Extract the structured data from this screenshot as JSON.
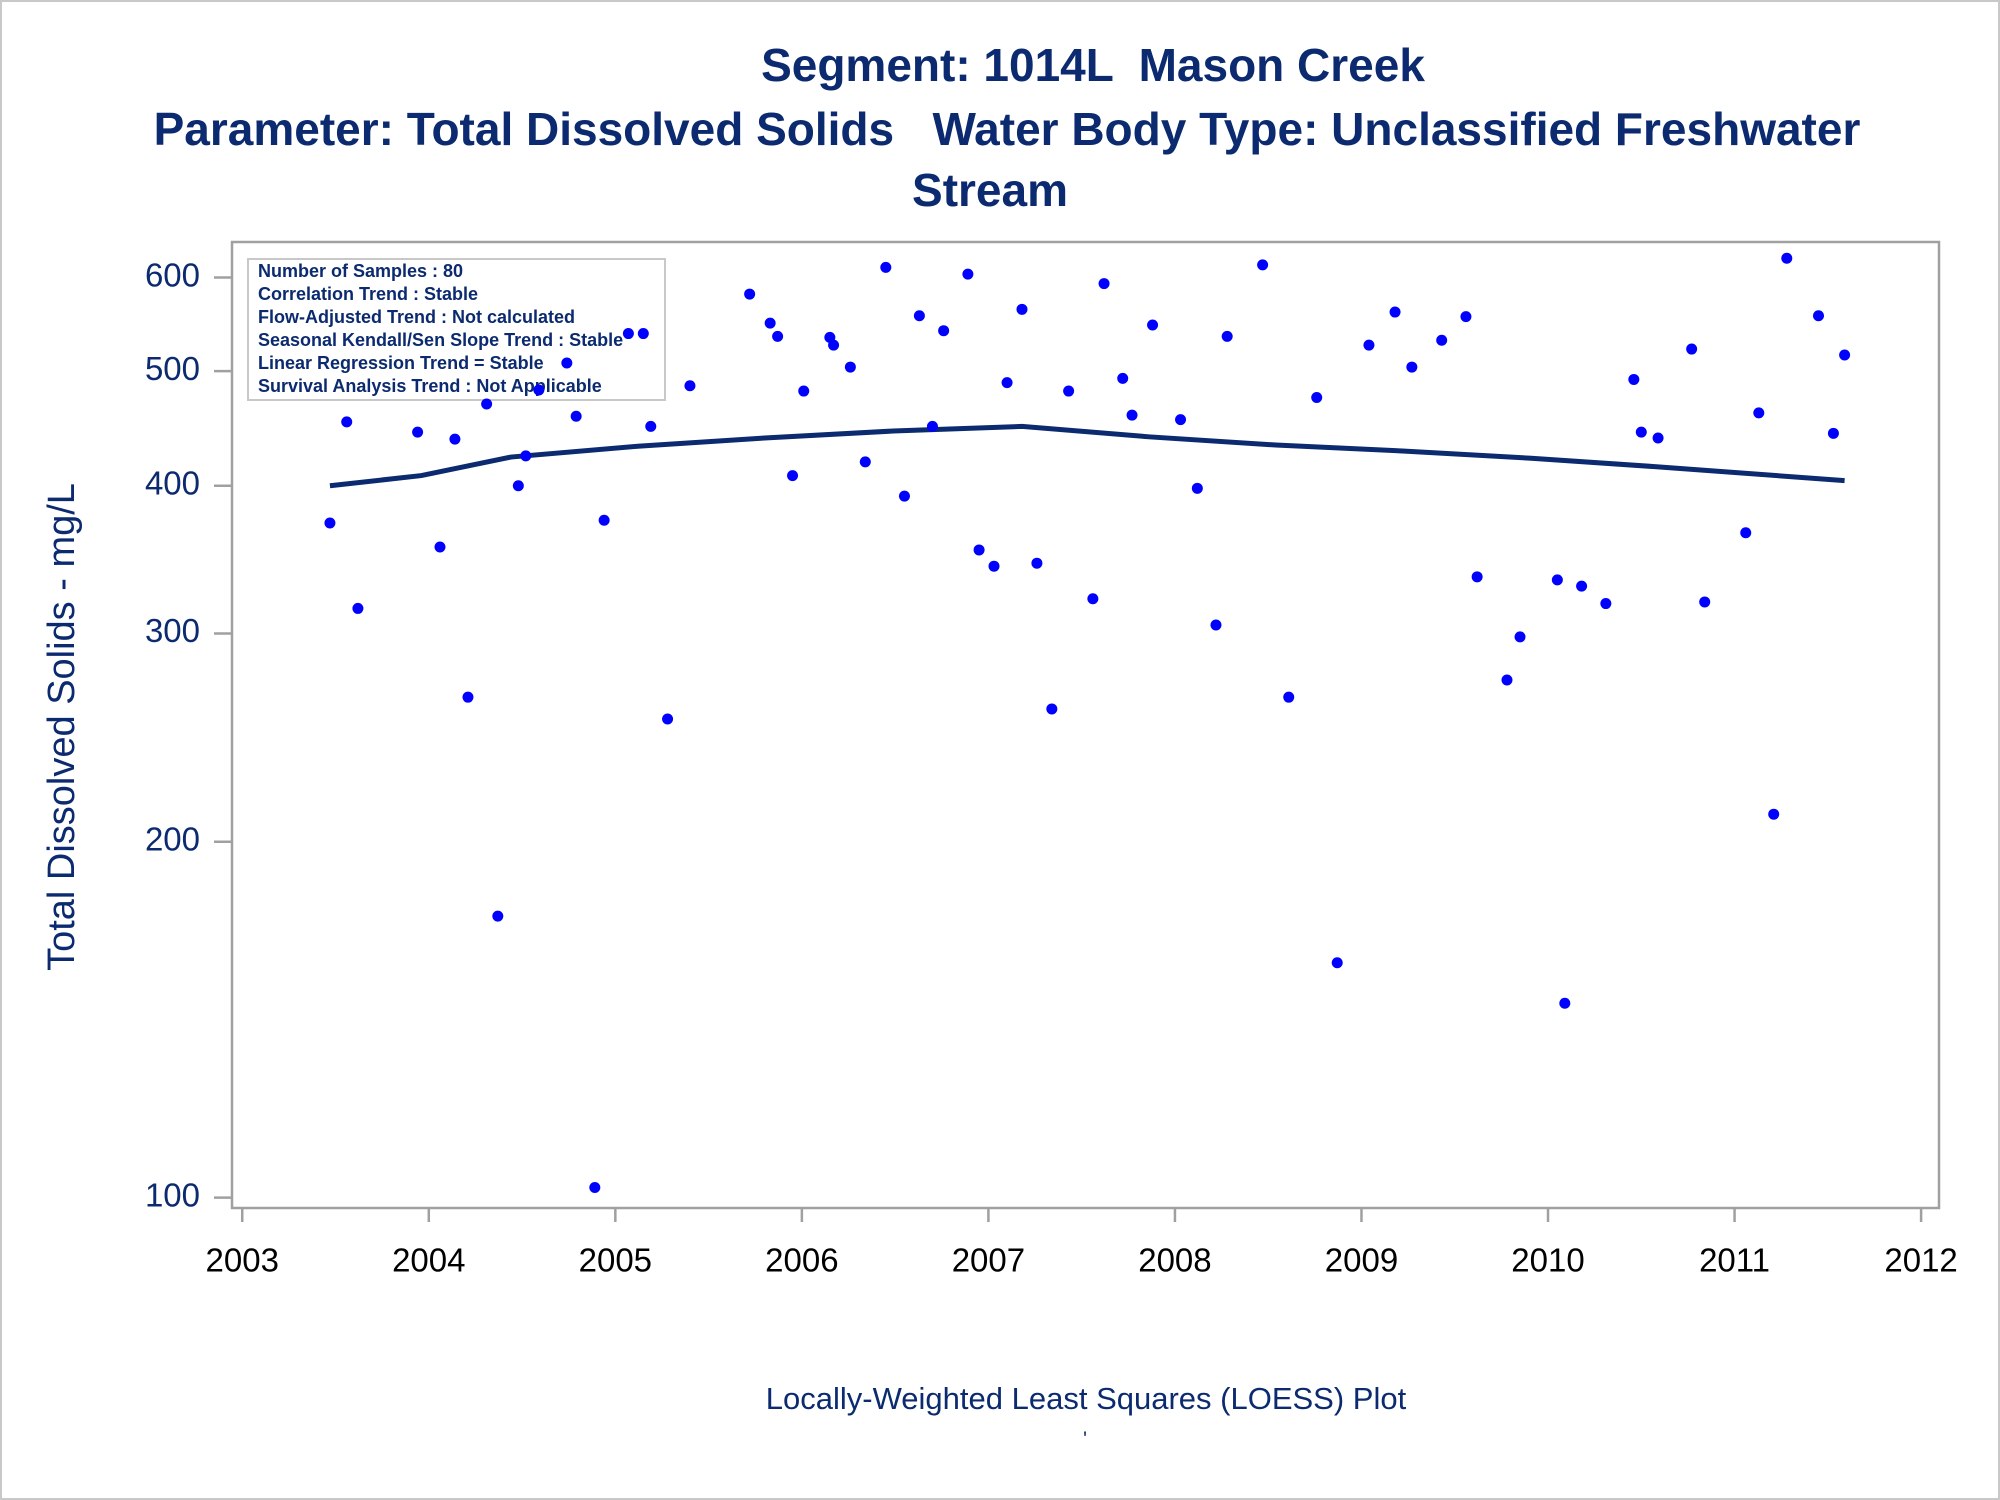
{
  "chart_data": {
    "type": "scatter",
    "title": "Segment: 1014L  Mason Creek",
    "subtitle": "Parameter: Total Dissolved Solids   Water Body Type: Unclassified Freshwater",
    "subtitle2": "Stream",
    "y_label": "Total Dissolved Solids - mg/L",
    "x_label": "Locally-Weighted Least Squares (LOESS) Plot",
    "footnote": "'",
    "annotations": [
      "Number of Samples : 80",
      "Correlation Trend : Stable",
      "Flow-Adjusted Trend : Not calculated",
      "Seasonal Kendall/Sen Slope Trend : Stable",
      "Linear Regression Trend = Stable",
      "Survival Analysis Trend : Not Applicable"
    ],
    "yscale": "log",
    "xlim": [
      2002.945,
      2012.096
    ],
    "xticks": [
      2003,
      2004,
      2005,
      2006,
      2007,
      2008,
      2009,
      2010,
      2011,
      2012
    ],
    "ylim": [
      98,
      643
    ],
    "yticks": [
      100,
      200,
      300,
      400,
      500,
      600
    ],
    "series": [
      {
        "type": "scatter",
        "color": "#0000ff",
        "x": [
          2003.47,
          2003.56,
          2003.62,
          2003.94,
          2004.06,
          2004.14,
          2004.21,
          2004.31,
          2004.37,
          2004.48,
          2004.52,
          2004.59,
          2004.74,
          2004.79,
          2004.89,
          2004.94,
          2005.07,
          2005.15,
          2005.19,
          2005.28,
          2005.4,
          2005.72,
          2005.83,
          2005.87,
          2005.95,
          2006.01,
          2006.15,
          2006.17,
          2006.26,
          2006.34,
          2006.45,
          2006.55,
          2006.63,
          2006.7,
          2006.76,
          2006.89,
          2006.95,
          2007.03,
          2007.1,
          2007.18,
          2007.26,
          2007.34,
          2007.43,
          2007.56,
          2007.62,
          2007.72,
          2007.77,
          2007.88,
          2008.03,
          2008.12,
          2008.22,
          2008.28,
          2008.47,
          2008.61,
          2008.76,
          2008.87,
          2009.04,
          2009.18,
          2009.27,
          2009.43,
          2009.56,
          2009.62,
          2009.78,
          2009.85,
          2010.05,
          2010.09,
          2010.18,
          2010.31,
          2010.46,
          2010.5,
          2010.59,
          2010.77,
          2010.84,
          2011.06,
          2011.13,
          2011.21,
          2011.28,
          2011.45,
          2011.53,
          2011.59
        ],
        "values": [
          372,
          453,
          315,
          444,
          355,
          438,
          265,
          469,
          173,
          400,
          424,
          482,
          508,
          458,
          102,
          374,
          538,
          538,
          449,
          254,
          486,
          581,
          549,
          535,
          408,
          481,
          534,
          526,
          504,
          419,
          612,
          392,
          557,
          449,
          541,
          604,
          353,
          342,
          489,
          564,
          344,
          259,
          481,
          321,
          593,
          493,
          459,
          547,
          455,
          398,
          305,
          535,
          615,
          265,
          475,
          158,
          526,
          561,
          504,
          531,
          556,
          335,
          274,
          298,
          333,
          146,
          329,
          318,
          492,
          444,
          439,
          522,
          319,
          365,
          461,
          211,
          623,
          557,
          443,
          516
        ]
      },
      {
        "type": "line",
        "color": "#0b2a6f",
        "x": [
          2003.47,
          2003.96,
          2004.44,
          2005.12,
          2005.8,
          2006.49,
          2007.18,
          2007.86,
          2008.54,
          2009.22,
          2009.91,
          2010.59,
          2011.59
        ],
        "values": [
          400,
          408,
          423,
          432,
          439,
          445,
          449,
          440,
          433,
          428,
          422,
          415,
          404
        ]
      }
    ]
  }
}
